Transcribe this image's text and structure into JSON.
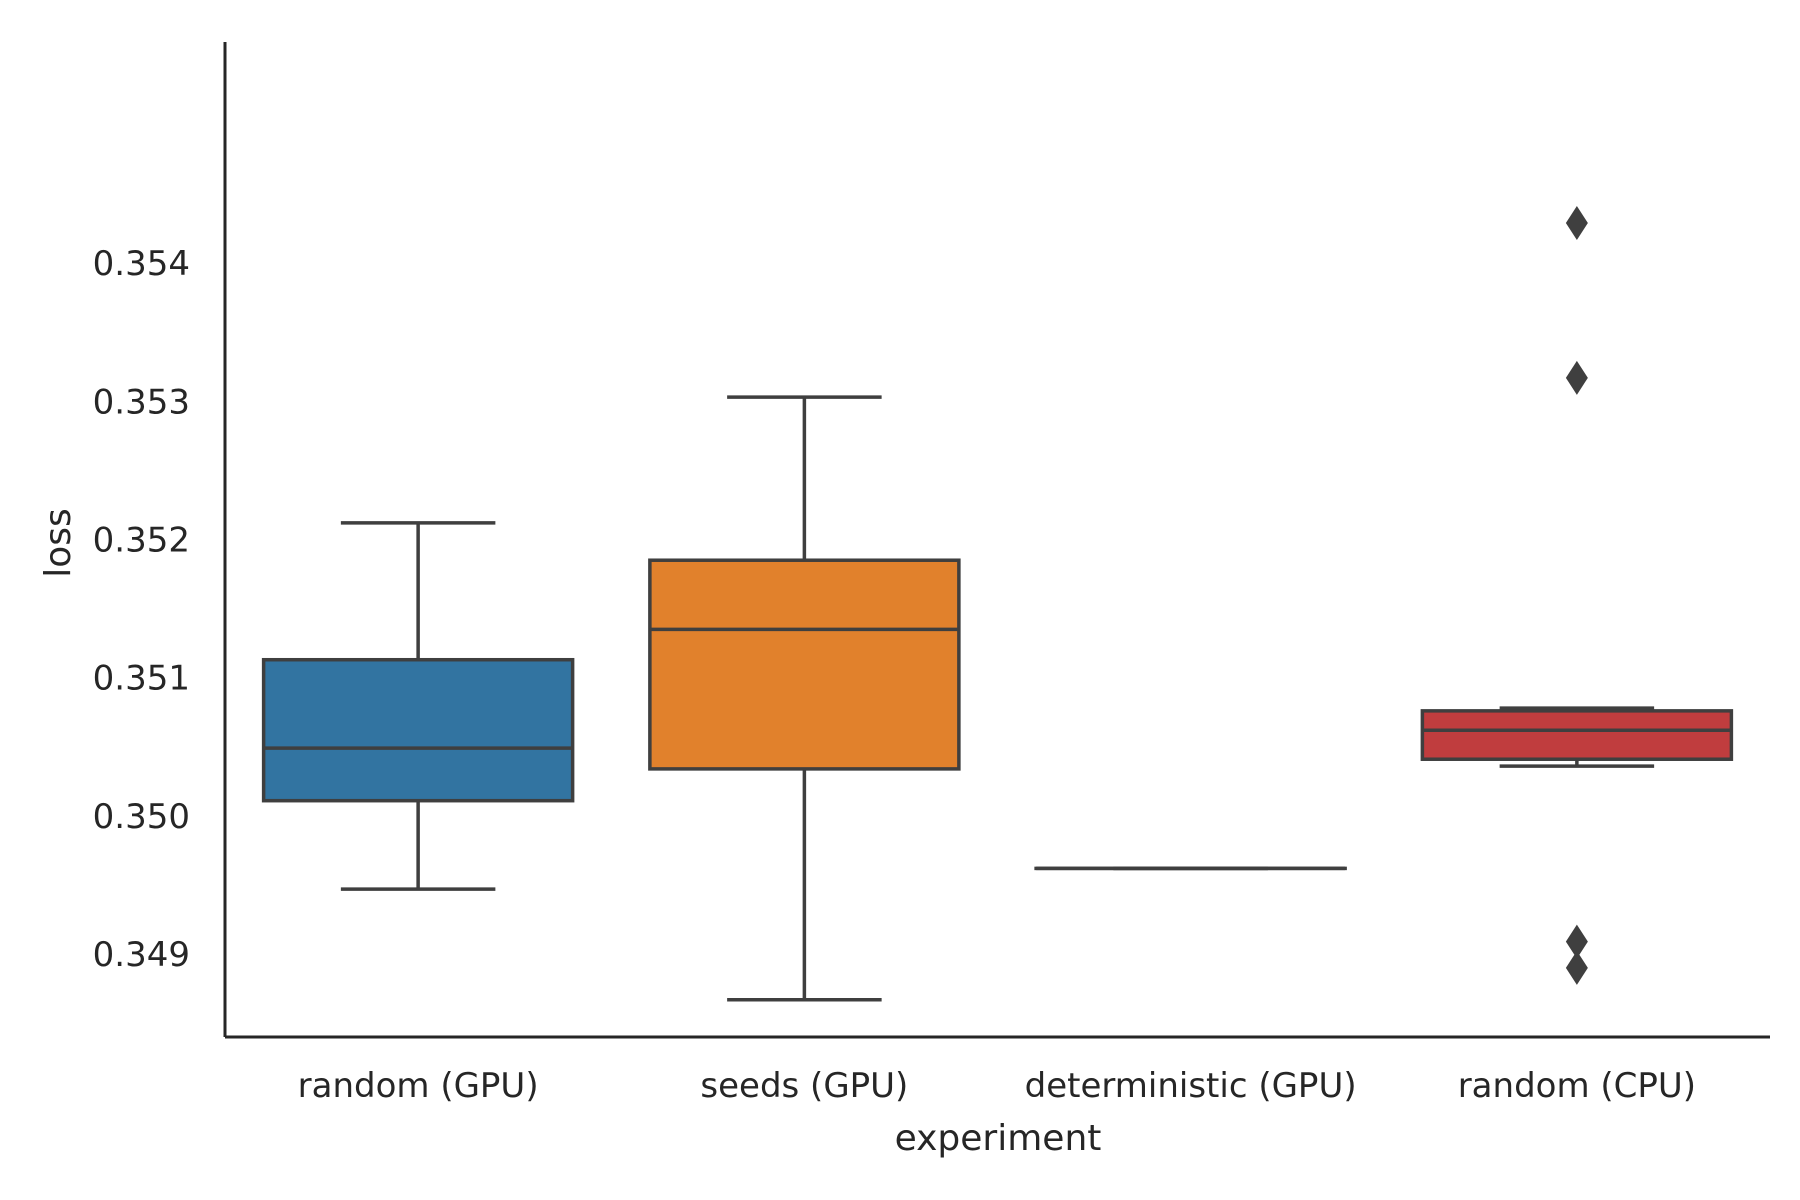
{
  "chart_data": {
    "type": "box",
    "title": "",
    "xlabel": "experiment",
    "ylabel": "loss",
    "ylim": [
      0.3484,
      0.3556
    ],
    "yticks": [
      0.349,
      0.35,
      0.351,
      0.352,
      0.353,
      0.354
    ],
    "ytick_labels": [
      "0.349",
      "0.350",
      "0.351",
      "0.352",
      "0.353",
      "0.354"
    ],
    "grid": false,
    "categories": [
      "random (GPU)",
      "seeds (GPU)",
      "deterministic (GPU)",
      "random (CPU)"
    ],
    "boxes": [
      {
        "category": "random (GPU)",
        "color": "#3274a1",
        "whisker_low": 0.34947,
        "q1": 0.35011,
        "median": 0.35049,
        "q3": 0.35113,
        "whisker_high": 0.35212,
        "outliers": []
      },
      {
        "category": "seeds (GPU)",
        "color": "#e1812c",
        "whisker_low": 0.34867,
        "q1": 0.35034,
        "median": 0.35135,
        "q3": 0.35185,
        "whisker_high": 0.35303,
        "outliers": []
      },
      {
        "category": "deterministic (GPU)",
        "color": "#3a923a",
        "whisker_low": 0.34962,
        "q1": 0.34962,
        "median": 0.34962,
        "q3": 0.34962,
        "whisker_high": 0.34962,
        "outliers": []
      },
      {
        "category": "random (CPU)",
        "color": "#c03d3e",
        "whisker_low": 0.35036,
        "q1": 0.35041,
        "median": 0.35062,
        "q3": 0.35076,
        "whisker_high": 0.35078,
        "outliers": [
          0.35429,
          0.35317,
          0.34909,
          0.3489
        ]
      }
    ]
  }
}
